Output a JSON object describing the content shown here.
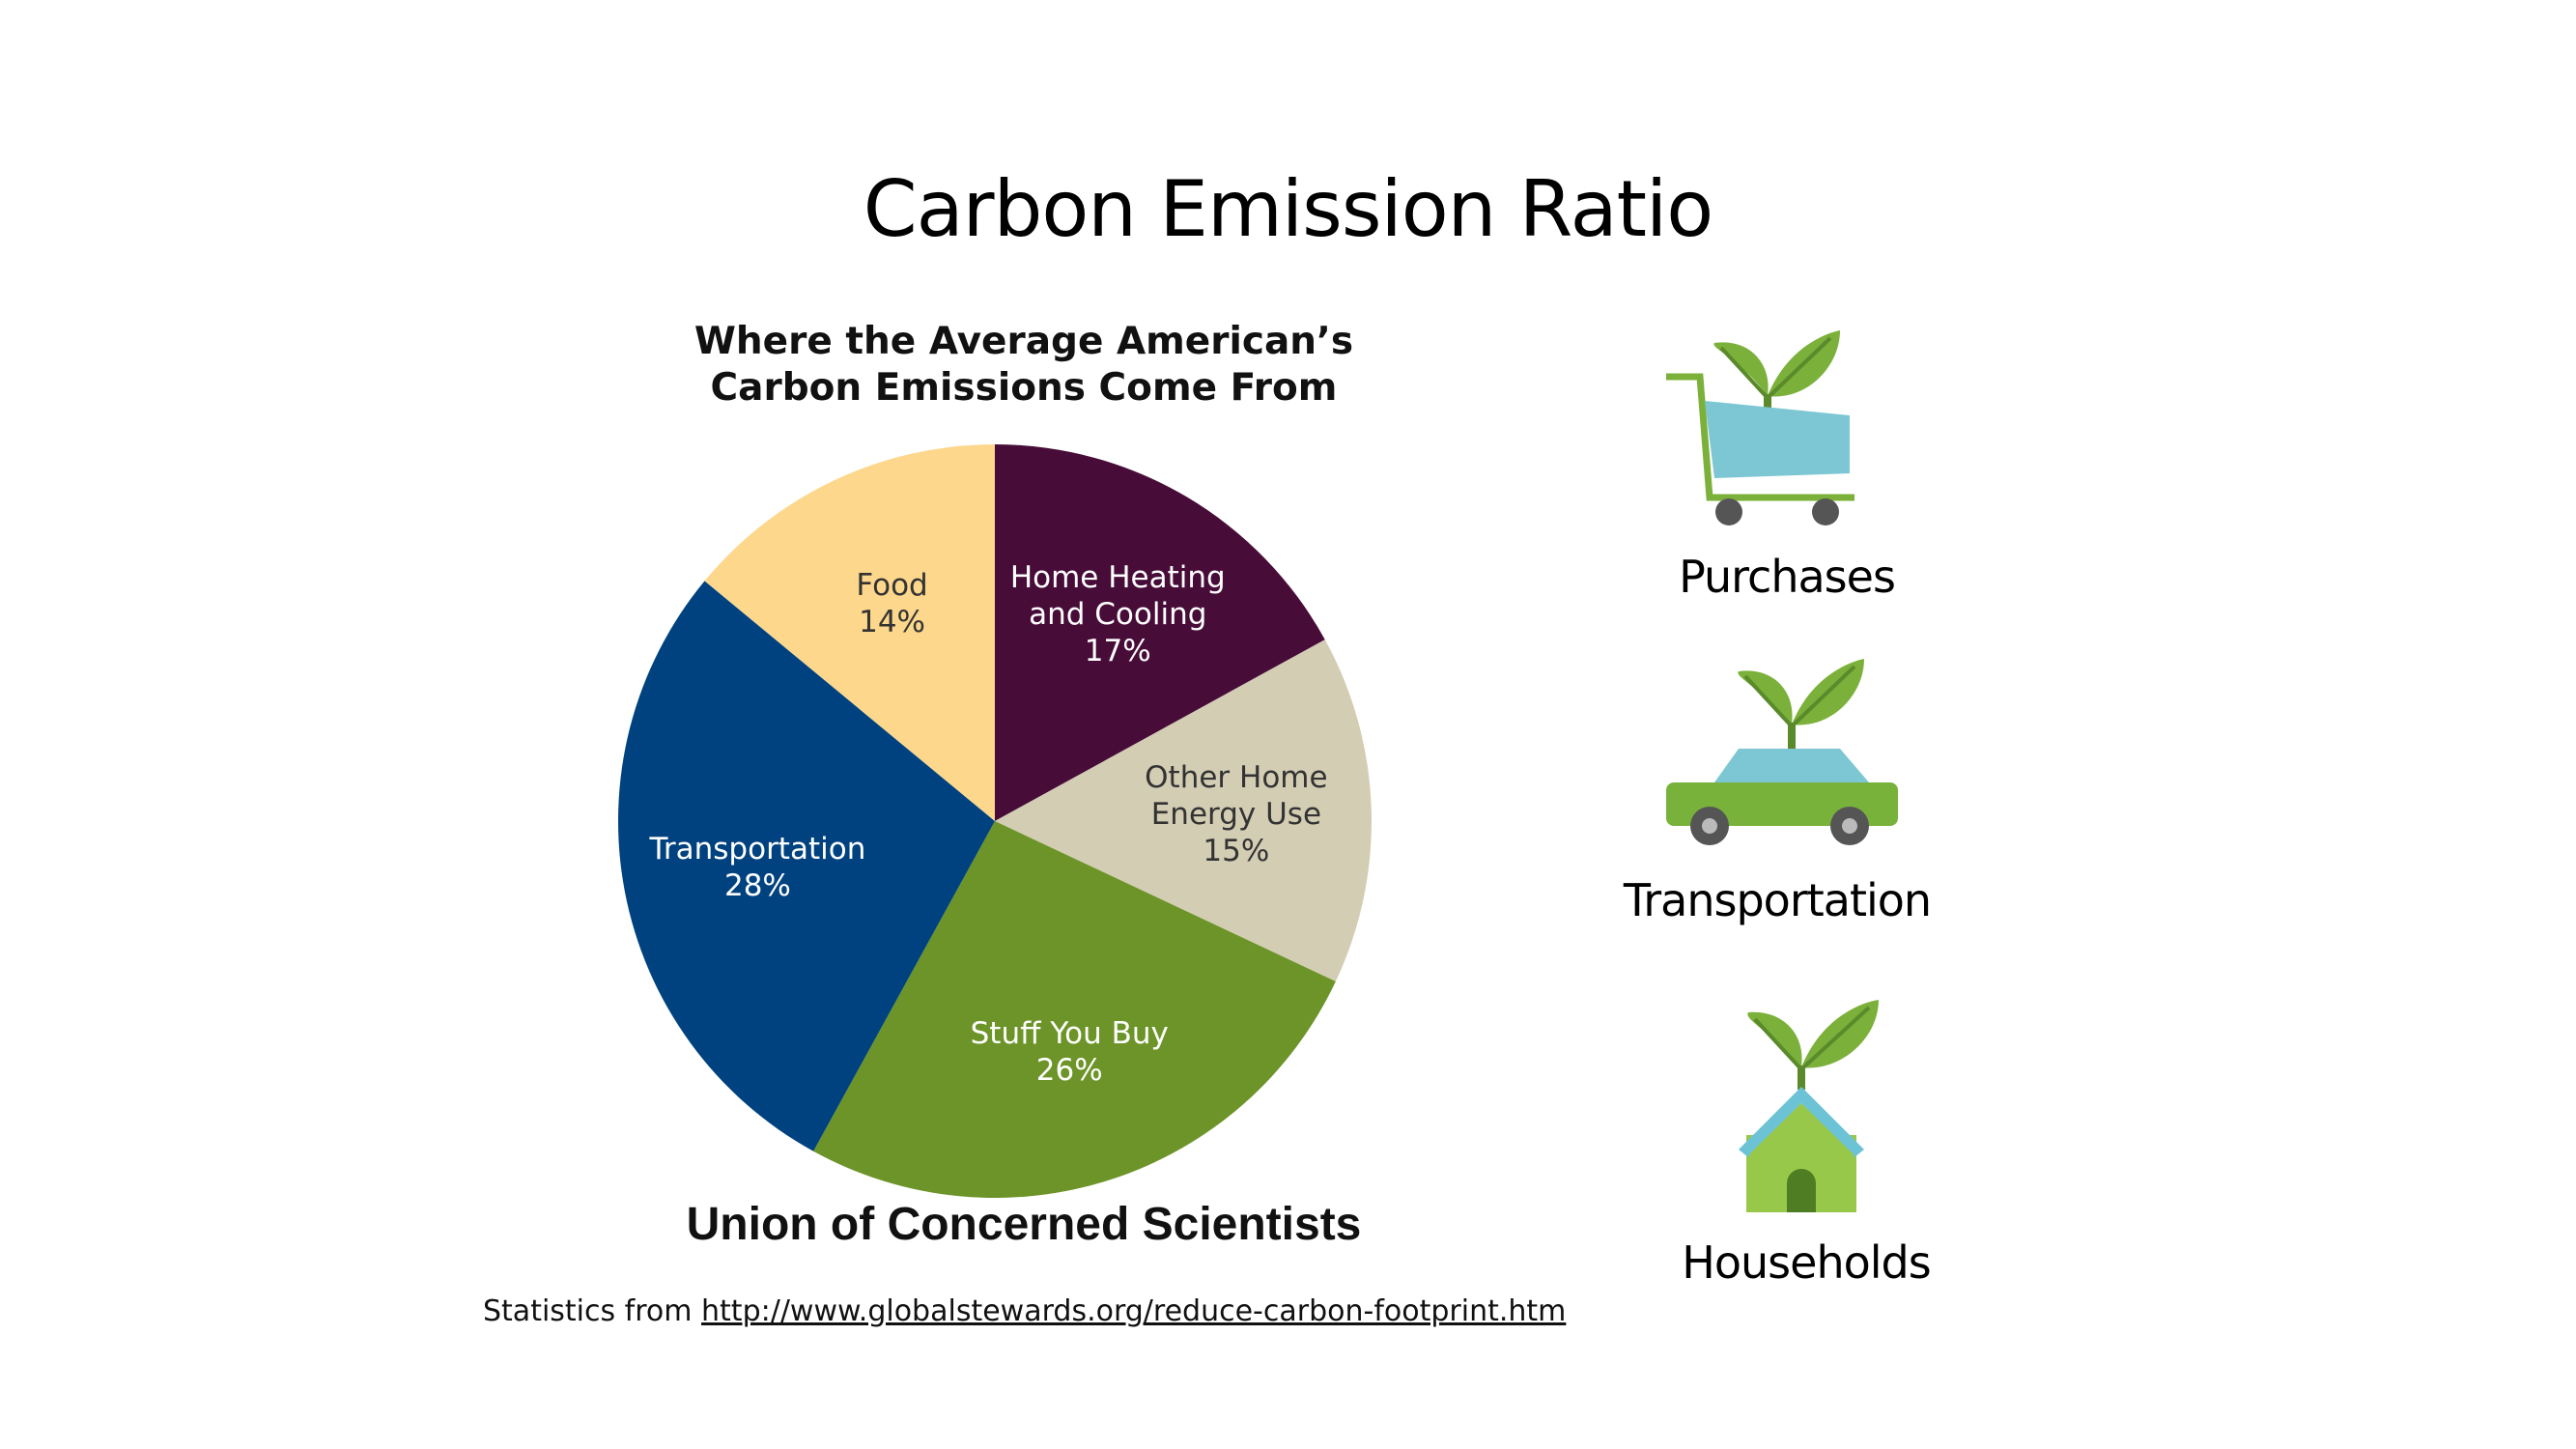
{
  "slide_title": "Carbon Emission Ratio",
  "chart_data": {
    "type": "pie",
    "title_lines": [
      "Where the Average American’s",
      "Carbon Emissions Come From"
    ],
    "slices": [
      {
        "label_lines": [
          "Home Heating",
          "and Cooling"
        ],
        "value": 17,
        "value_label": "17%",
        "color": "#470c38",
        "text_color": "#ffffff"
      },
      {
        "label_lines": [
          "Other Home",
          "Energy Use"
        ],
        "value": 15,
        "value_label": "15%",
        "color": "#d3cdb4",
        "text_color": "#333333"
      },
      {
        "label_lines": [
          "Stuff You Buy"
        ],
        "value": 26,
        "value_label": "26%",
        "color": "#6c9428",
        "text_color": "#ffffff"
      },
      {
        "label_lines": [
          "Transportation"
        ],
        "value": 28,
        "value_label": "28%",
        "color": "#00427f",
        "text_color": "#ffffff"
      },
      {
        "label_lines": [
          "Food"
        ],
        "value": 14,
        "value_label": "14%",
        "color": "#fdd78c",
        "text_color": "#333333"
      }
    ]
  },
  "credit": "Union of Concerned Scientists",
  "stats": {
    "prefix": "Statistics from ",
    "link_text": "http://www.globalstewards.org/reduce-carbon-footprint.htm"
  },
  "icons": [
    {
      "name": "shopping-cart-plant-icon",
      "label": "Purchases"
    },
    {
      "name": "car-plant-icon",
      "label": "Transportation"
    },
    {
      "name": "house-plant-icon",
      "label": "Households"
    }
  ],
  "colors": {
    "leaf": "#7bb13a",
    "leaf_dark": "#5a8a2b",
    "cart_basket": "#7cc7d3",
    "car_body": "#78b23b",
    "house_roof": "#6cc3d6",
    "house_wall": "#98c84a",
    "wheel": "#555555"
  }
}
